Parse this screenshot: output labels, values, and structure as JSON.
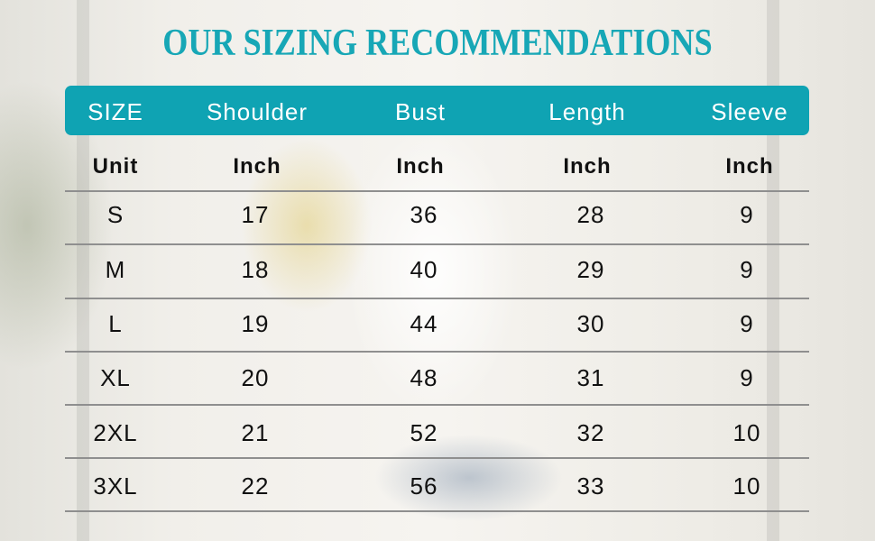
{
  "title": "OUR SIZING RECOMMENDATIONS",
  "accent_color": "#0fa3b3",
  "headers": [
    "SIZE",
    "Shoulder",
    "Bust",
    "Length",
    "Sleeve"
  ],
  "units": [
    "Unit",
    "Inch",
    "Inch",
    "Inch",
    "Inch"
  ],
  "rows": [
    [
      "S",
      "17",
      "36",
      "28",
      "9"
    ],
    [
      "M",
      "18",
      "40",
      "29",
      "9"
    ],
    [
      "L",
      "19",
      "44",
      "30",
      "9"
    ],
    [
      "XL",
      "20",
      "48",
      "31",
      "9"
    ],
    [
      "2XL",
      "21",
      "52",
      "32",
      "10"
    ],
    [
      "3XL",
      "22",
      "56",
      "33",
      "10"
    ]
  ]
}
